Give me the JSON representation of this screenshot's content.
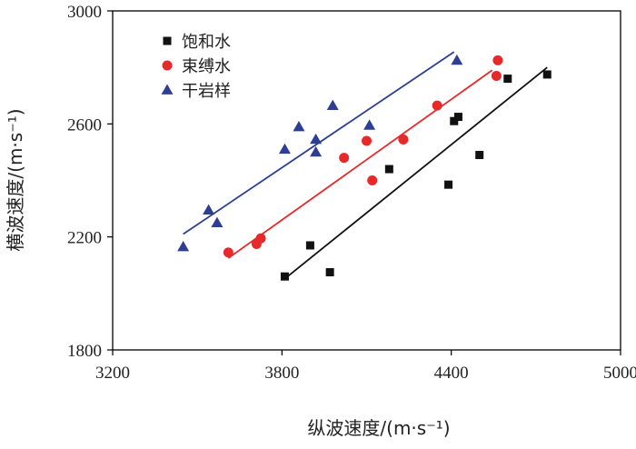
{
  "chart_data": {
    "type": "scatter",
    "xlabel": "纵波速度/(m·s⁻¹)",
    "ylabel": "横波速度/(m·s⁻¹)",
    "xlim": [
      3200,
      5000
    ],
    "ylim": [
      1800,
      3000
    ],
    "xticks": [
      3200,
      3800,
      4400,
      5000
    ],
    "yticks": [
      1800,
      2200,
      2600,
      3000
    ],
    "xtick_labels": [
      "3200",
      "3800",
      "4400",
      "5000"
    ],
    "ytick_labels": [
      "1800",
      "2200",
      "2600",
      "3000"
    ],
    "legend_position": "top-left",
    "series": [
      {
        "name": "饱和水",
        "marker": "square",
        "color": "#111111",
        "points": [
          [
            3810,
            2060
          ],
          [
            3900,
            2170
          ],
          [
            3970,
            2075
          ],
          [
            4180,
            2440
          ],
          [
            4390,
            2385
          ],
          [
            4410,
            2610
          ],
          [
            4425,
            2625
          ],
          [
            4500,
            2490
          ],
          [
            4600,
            2760
          ],
          [
            4740,
            2775
          ]
        ],
        "fit": {
          "x": [
            3820,
            4740
          ],
          "y": [
            2060,
            2800
          ]
        }
      },
      {
        "name": "束缚水",
        "marker": "circle",
        "color": "#e8292a",
        "points": [
          [
            3610,
            2145
          ],
          [
            3710,
            2175
          ],
          [
            3725,
            2195
          ],
          [
            4020,
            2480
          ],
          [
            4100,
            2540
          ],
          [
            4120,
            2400
          ],
          [
            4230,
            2545
          ],
          [
            4350,
            2665
          ],
          [
            4560,
            2770
          ],
          [
            4565,
            2825
          ]
        ],
        "fit": {
          "x": [
            3610,
            4545
          ],
          "y": [
            2125,
            2790
          ]
        }
      },
      {
        "name": "干岩样",
        "marker": "triangle",
        "color": "#2e3f93",
        "points": [
          [
            3450,
            2165
          ],
          [
            3540,
            2295
          ],
          [
            3570,
            2250
          ],
          [
            3810,
            2510
          ],
          [
            3860,
            2590
          ],
          [
            3920,
            2545
          ],
          [
            3920,
            2500
          ],
          [
            3980,
            2665
          ],
          [
            4110,
            2595
          ],
          [
            4420,
            2825
          ]
        ],
        "fit": {
          "x": [
            3450,
            4410
          ],
          "y": [
            2210,
            2855
          ]
        }
      }
    ]
  }
}
